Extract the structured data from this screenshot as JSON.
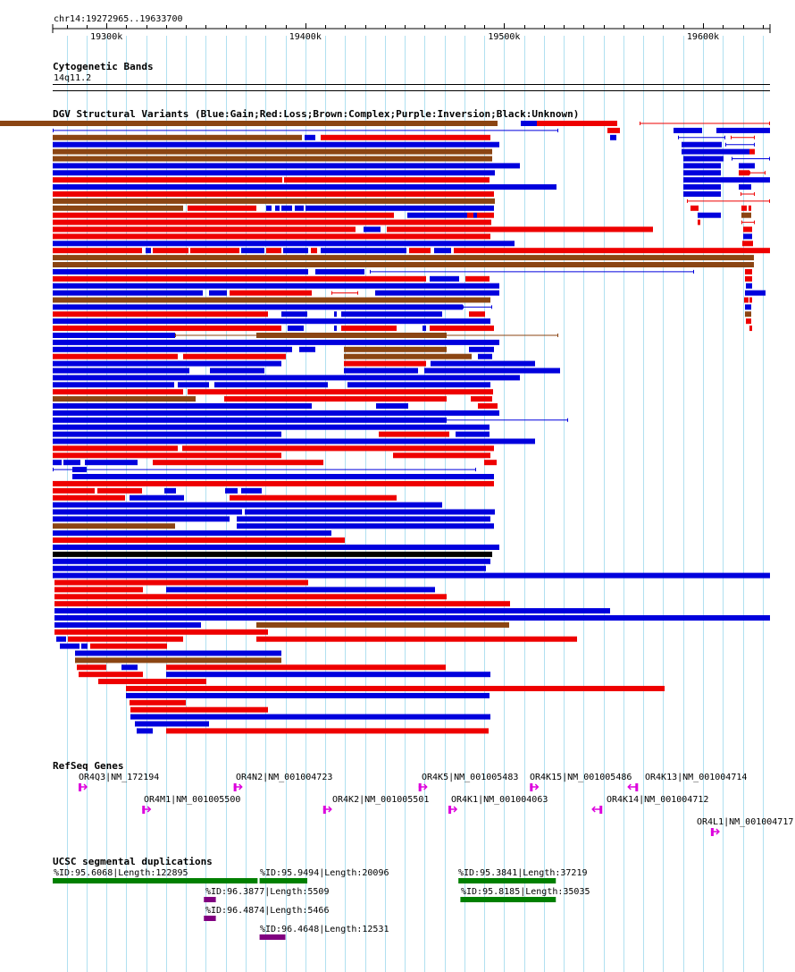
{
  "location": "chr14:19272965..19633700",
  "ruler": {
    "start": 19272965,
    "end": 19633700,
    "ticks": [
      "19300k",
      "19400k",
      "19500k",
      "19600k"
    ]
  },
  "tracks": {
    "cyto": {
      "title": "Cytogenetic Bands",
      "band": "14q11.2"
    },
    "dgv": {
      "title": "DGV Structural Variants (Blue:Gain;Red:Loss;Brown:Complex;Purple:Inversion;Black:Unknown)"
    },
    "refseq": {
      "title": "RefSeq Genes"
    },
    "segdup": {
      "title": "UCSC segmental duplications"
    }
  },
  "colors": {
    "gain": "#0000dd",
    "loss": "#ee0000",
    "complex": "#8b4513",
    "inversion": "#800080",
    "unknown": "#000000",
    "gene": "#dd00dd",
    "segdup_green": "#008000",
    "segdup_purple": "#800080",
    "grid": "#b0e0f0"
  },
  "genes": [
    {
      "label": "OR4Q3|NM_172194",
      "strand": "+",
      "start": 19286000,
      "end": 19289000
    },
    {
      "label": "OR4N2|NM_001004723",
      "strand": "+",
      "start": 19364000,
      "end": 19367000
    },
    {
      "label": "OR4K5|NM_001005483",
      "strand": "+",
      "start": 19457000,
      "end": 19460000
    },
    {
      "label": "OR4K15|NM_001005486",
      "strand": "+",
      "start": 19513000,
      "end": 19516000
    },
    {
      "label": "OR4K13|NM_001004714",
      "strand": "-",
      "start": 19566000,
      "end": 19569000
    },
    {
      "label": "OR4M1|NM_001005500",
      "strand": "+",
      "start": 19318000,
      "end": 19321000
    },
    {
      "label": "OR4K2|NM_001005501",
      "strand": "+",
      "start": 19409000,
      "end": 19412000
    },
    {
      "label": "OR4K1|NM_001004063",
      "strand": "+",
      "start": 19472000,
      "end": 19475000
    },
    {
      "label": "OR4K14|NM_001004712",
      "strand": "-",
      "start": 19548000,
      "end": 19551000
    },
    {
      "label": "OR4L1|NM_001004717",
      "strand": "+",
      "start": 19604000,
      "end": 19607000
    }
  ],
  "segdups": [
    {
      "label": "%ID:95.6068|Length:122895",
      "type": "green",
      "start": 19272965,
      "end": 19376000
    },
    {
      "label": "%ID:95.9494|Length:20096",
      "type": "green",
      "start": 19377000,
      "end": 19401000
    },
    {
      "label": "%ID:95.3841|Length:37219",
      "type": "green",
      "start": 19477000,
      "end": 19526000
    },
    {
      "label": "%ID:96.3877|Length:5509",
      "type": "purple",
      "start": 19349000,
      "end": 19355000
    },
    {
      "label": "%ID:95.8185|Length:35035",
      "type": "green",
      "start": 19478000,
      "end": 19526000
    },
    {
      "label": "%ID:96.4874|Length:5466",
      "type": "purple",
      "start": 19349000,
      "end": 19355000
    },
    {
      "label": "%ID:96.4648|Length:12531",
      "type": "purple",
      "start": 19377000,
      "end": 19390000
    }
  ],
  "variant_rows": [
    [
      [
        "c",
        0,
        557
      ],
      [
        "g",
        583,
        601
      ],
      [
        "r",
        601,
        691
      ],
      [
        "r",
        716,
        862,
        1
      ]
    ],
    [
      [
        "g",
        59,
        625,
        1
      ],
      [
        "r",
        680,
        694
      ],
      [
        "g",
        754,
        786
      ],
      [
        "g",
        802,
        862
      ]
    ],
    [
      [
        "c",
        59,
        338
      ],
      [
        "g",
        341,
        353
      ],
      [
        "r",
        359,
        549
      ],
      [
        "g",
        683,
        690
      ],
      [
        "g",
        759,
        812,
        1
      ],
      [
        "r",
        818,
        845,
        1
      ]
    ],
    [
      [
        "g",
        59,
        559
      ],
      [
        "g",
        763,
        808
      ],
      [
        "g",
        812,
        845,
        1
      ]
    ],
    [
      [
        "c",
        59,
        551
      ],
      [
        "g",
        763,
        839
      ],
      [
        "r",
        839,
        845
      ]
    ],
    [
      [
        "c",
        59,
        551
      ],
      [
        "g",
        765,
        810
      ],
      [
        "g",
        819,
        862,
        1
      ]
    ],
    [
      [
        "g",
        59,
        582
      ],
      [
        "g",
        765,
        807
      ],
      [
        "g",
        827,
        845
      ]
    ],
    [
      [
        "g",
        59,
        554
      ],
      [
        "g",
        765,
        807
      ],
      [
        "r",
        827,
        833
      ],
      [
        "r",
        833,
        839
      ],
      [
        "r",
        839,
        857,
        1
      ]
    ],
    [
      [
        "r",
        59,
        316
      ],
      [
        "r",
        318,
        548
      ],
      [
        "g",
        765,
        862
      ]
    ],
    [
      [
        "g",
        59,
        623
      ],
      [
        "g",
        765,
        807
      ],
      [
        "g",
        827,
        841
      ]
    ],
    [
      [
        "r",
        59,
        553
      ],
      [
        "g",
        765,
        807
      ],
      [
        "r",
        829,
        845,
        1
      ]
    ],
    [
      [
        "c",
        59,
        554
      ],
      [
        "r",
        769,
        862,
        1
      ]
    ],
    [
      [
        "c",
        59,
        205
      ],
      [
        "r",
        210,
        287
      ],
      [
        "g",
        298,
        304
      ],
      [
        "g",
        308,
        313
      ],
      [
        "g",
        315,
        327
      ],
      [
        "g",
        330,
        340
      ],
      [
        "g",
        342,
        553
      ],
      [
        "r",
        773,
        782
      ],
      [
        "r",
        830,
        836
      ],
      [
        "r",
        838,
        841
      ]
    ],
    [
      [
        "r",
        59,
        441
      ],
      [
        "g",
        456,
        523
      ],
      [
        "r",
        523,
        530
      ],
      [
        "g",
        530,
        534
      ],
      [
        "r",
        534,
        553
      ],
      [
        "g",
        781,
        807
      ],
      [
        "c",
        830,
        841
      ]
    ],
    [
      [
        "r",
        59,
        550
      ],
      [
        "r",
        781,
        784
      ],
      [
        "r",
        830,
        845,
        1
      ]
    ],
    [
      [
        "r",
        59,
        398
      ],
      [
        "g",
        407,
        426
      ],
      [
        "r",
        433,
        731
      ],
      [
        "r",
        832,
        842
      ]
    ],
    [
      [
        "r",
        59,
        549
      ],
      [
        "g",
        832,
        842
      ]
    ],
    [
      [
        "g",
        59,
        576
      ],
      [
        "r",
        831,
        843
      ]
    ],
    [
      [
        "r",
        59,
        159
      ],
      [
        "g",
        163,
        169
      ],
      [
        "r",
        171,
        211
      ],
      [
        "r",
        213,
        268
      ],
      [
        "g",
        270,
        296
      ],
      [
        "r",
        298,
        315
      ],
      [
        "g",
        317,
        345
      ],
      [
        "r",
        348,
        355
      ],
      [
        "g",
        359,
        455
      ],
      [
        "r",
        458,
        482
      ],
      [
        "g",
        486,
        505
      ],
      [
        "r",
        508,
        862
      ]
    ],
    [
      [
        "c",
        59,
        844
      ]
    ],
    [
      [
        "c",
        59,
        844
      ]
    ],
    [
      [
        "g",
        59,
        345
      ],
      [
        "g",
        353,
        408
      ],
      [
        "g",
        414,
        777,
        1
      ],
      [
        "r",
        834,
        842
      ]
    ],
    [
      [
        "r",
        59,
        477
      ],
      [
        "g",
        481,
        514
      ],
      [
        "r",
        521,
        548
      ],
      [
        "r",
        834,
        842
      ]
    ],
    [
      [
        "g",
        59,
        559
      ],
      [
        "g",
        835,
        842
      ]
    ],
    [
      [
        "g",
        59,
        227
      ],
      [
        "g",
        234,
        254
      ],
      [
        "r",
        257,
        349
      ],
      [
        "r",
        371,
        401,
        1
      ],
      [
        "g",
        420,
        559
      ],
      [
        "g",
        834,
        857
      ]
    ],
    [
      [
        "c",
        59,
        549
      ],
      [
        "r",
        833,
        838
      ],
      [
        "r",
        839,
        842
      ]
    ],
    [
      [
        "g",
        59,
        518
      ],
      [
        "g",
        518,
        551,
        1
      ],
      [
        "g",
        834,
        841
      ]
    ],
    [
      [
        "r",
        59,
        300
      ],
      [
        "g",
        315,
        344
      ],
      [
        "g",
        374,
        377
      ],
      [
        "g",
        382,
        495
      ],
      [
        "r",
        525,
        543
      ],
      [
        "c",
        834,
        841
      ]
    ],
    [
      [
        "g",
        59,
        549
      ],
      [
        "r",
        835,
        841
      ]
    ],
    [
      [
        "r",
        59,
        315
      ],
      [
        "g",
        322,
        340
      ],
      [
        "g",
        374,
        377
      ],
      [
        "r",
        382,
        444
      ],
      [
        "g",
        473,
        477
      ],
      [
        "r",
        481,
        553
      ],
      [
        "r",
        839,
        842
      ]
    ],
    [
      [
        "g",
        59,
        196
      ],
      [
        "c",
        287,
        500
      ],
      [
        "c",
        196,
        625,
        1
      ]
    ],
    [
      [
        "g",
        59,
        559
      ]
    ],
    [
      [
        "g",
        59,
        327
      ],
      [
        "g",
        335,
        353
      ],
      [
        "c",
        385,
        500
      ],
      [
        "g",
        525,
        553
      ]
    ],
    [
      [
        "r",
        59,
        199
      ],
      [
        "r",
        205,
        320
      ],
      [
        "c",
        385,
        528
      ],
      [
        "g",
        535,
        551
      ]
    ],
    [
      [
        "g",
        59,
        315
      ],
      [
        "r",
        385,
        477
      ],
      [
        "g",
        482,
        599
      ]
    ],
    [
      [
        "g",
        59,
        212
      ],
      [
        "g",
        235,
        296
      ],
      [
        "g",
        385,
        468
      ],
      [
        "g",
        475,
        627
      ]
    ],
    [
      [
        "g",
        59,
        582
      ]
    ],
    [
      [
        "g",
        59,
        195
      ],
      [
        "g",
        199,
        234
      ],
      [
        "g",
        240,
        367
      ],
      [
        "g",
        389,
        549
      ]
    ],
    [
      [
        "r",
        59,
        205
      ],
      [
        "r",
        210,
        552
      ]
    ],
    [
      [
        "c",
        59,
        219
      ],
      [
        "r",
        251,
        500
      ],
      [
        "r",
        527,
        551
      ]
    ],
    [
      [
        "g",
        59,
        349
      ],
      [
        "g",
        421,
        457
      ],
      [
        "r",
        535,
        557
      ]
    ],
    [
      [
        "g",
        59,
        559
      ]
    ],
    [
      [
        "g",
        59,
        500
      ],
      [
        "g",
        159,
        636,
        1
      ]
    ],
    [
      [
        "g",
        59,
        548
      ]
    ],
    [
      [
        "g",
        59,
        315
      ],
      [
        "r",
        424,
        503
      ],
      [
        "g",
        510,
        548
      ]
    ],
    [
      [
        "g",
        59,
        599
      ]
    ],
    [
      [
        "r",
        59,
        199
      ],
      [
        "r",
        204,
        553
      ]
    ],
    [
      [
        "r",
        59,
        315
      ],
      [
        "r",
        440,
        549
      ]
    ],
    [
      [
        "g",
        59,
        69
      ],
      [
        "g",
        71,
        90
      ],
      [
        "g",
        95,
        154
      ],
      [
        "r",
        171,
        362
      ],
      [
        "r",
        542,
        556
      ]
    ],
    [
      [
        "g",
        59,
        533,
        1
      ],
      [
        "g",
        81,
        97
      ]
    ],
    [
      [
        "g",
        81,
        553
      ]
    ],
    [
      [
        "r",
        59,
        553
      ]
    ],
    [
      [
        "r",
        59,
        106
      ],
      [
        "r",
        109,
        159
      ],
      [
        "g",
        184,
        197
      ],
      [
        "g",
        252,
        266
      ],
      [
        "g",
        270,
        293
      ]
    ],
    [
      [
        "r",
        59,
        140
      ],
      [
        "g",
        145,
        206
      ],
      [
        "r",
        257,
        444
      ]
    ],
    [
      [
        "g",
        59,
        495
      ]
    ],
    [
      [
        "g",
        59,
        271
      ],
      [
        "g",
        274,
        554
      ]
    ],
    [
      [
        "g",
        59,
        257
      ],
      [
        "g",
        265,
        549
      ]
    ],
    [
      [
        "c",
        59,
        196
      ],
      [
        "g",
        265,
        553
      ]
    ],
    [
      [
        "g",
        59,
        371
      ]
    ],
    [
      [
        "r",
        59,
        386
      ]
    ],
    [
      [
        "g",
        59,
        559
      ]
    ],
    [
      [
        "u",
        59,
        551
      ]
    ],
    [
      [
        "g",
        59,
        549
      ]
    ],
    [
      [
        "g",
        59,
        544
      ]
    ],
    [
      [
        "g",
        59,
        862
      ]
    ],
    [
      [
        "r",
        61,
        345
      ]
    ],
    [
      [
        "r",
        61,
        160
      ],
      [
        "g",
        186,
        487
      ]
    ],
    [
      [
        "r",
        61,
        500
      ]
    ],
    [
      [
        "r",
        61,
        571
      ]
    ],
    [
      [
        "g",
        61,
        683
      ]
    ],
    [
      [
        "g",
        61,
        862
      ]
    ],
    [
      [
        "g",
        61,
        225
      ],
      [
        "c",
        287,
        570
      ]
    ],
    [
      [
        "r",
        61,
        300
      ]
    ],
    [
      [
        "g",
        63,
        74
      ],
      [
        "r",
        76,
        205
      ],
      [
        "r",
        287,
        646
      ]
    ],
    [
      [
        "g",
        67,
        89
      ],
      [
        "g",
        91,
        98
      ],
      [
        "r",
        101,
        187
      ]
    ],
    [
      [
        "g",
        84,
        315
      ]
    ],
    [
      [
        "c",
        84,
        315
      ]
    ],
    [
      [
        "r",
        86,
        119
      ],
      [
        "g",
        136,
        154
      ],
      [
        "r",
        186,
        499
      ]
    ],
    [
      [
        "r",
        88,
        160
      ],
      [
        "g",
        186,
        549
      ]
    ],
    [
      [
        "r",
        110,
        231
      ]
    ],
    [
      [
        "r",
        141,
        744
      ]
    ],
    [
      [
        "g",
        141,
        548
      ]
    ],
    [
      [
        "r",
        145,
        208
      ]
    ],
    [
      [
        "r",
        146,
        300
      ]
    ],
    [
      [
        "g",
        146,
        549
      ]
    ],
    [
      [
        "g",
        151,
        234
      ]
    ],
    [
      [
        "g",
        153,
        171
      ],
      [
        "r",
        186,
        547
      ]
    ]
  ]
}
